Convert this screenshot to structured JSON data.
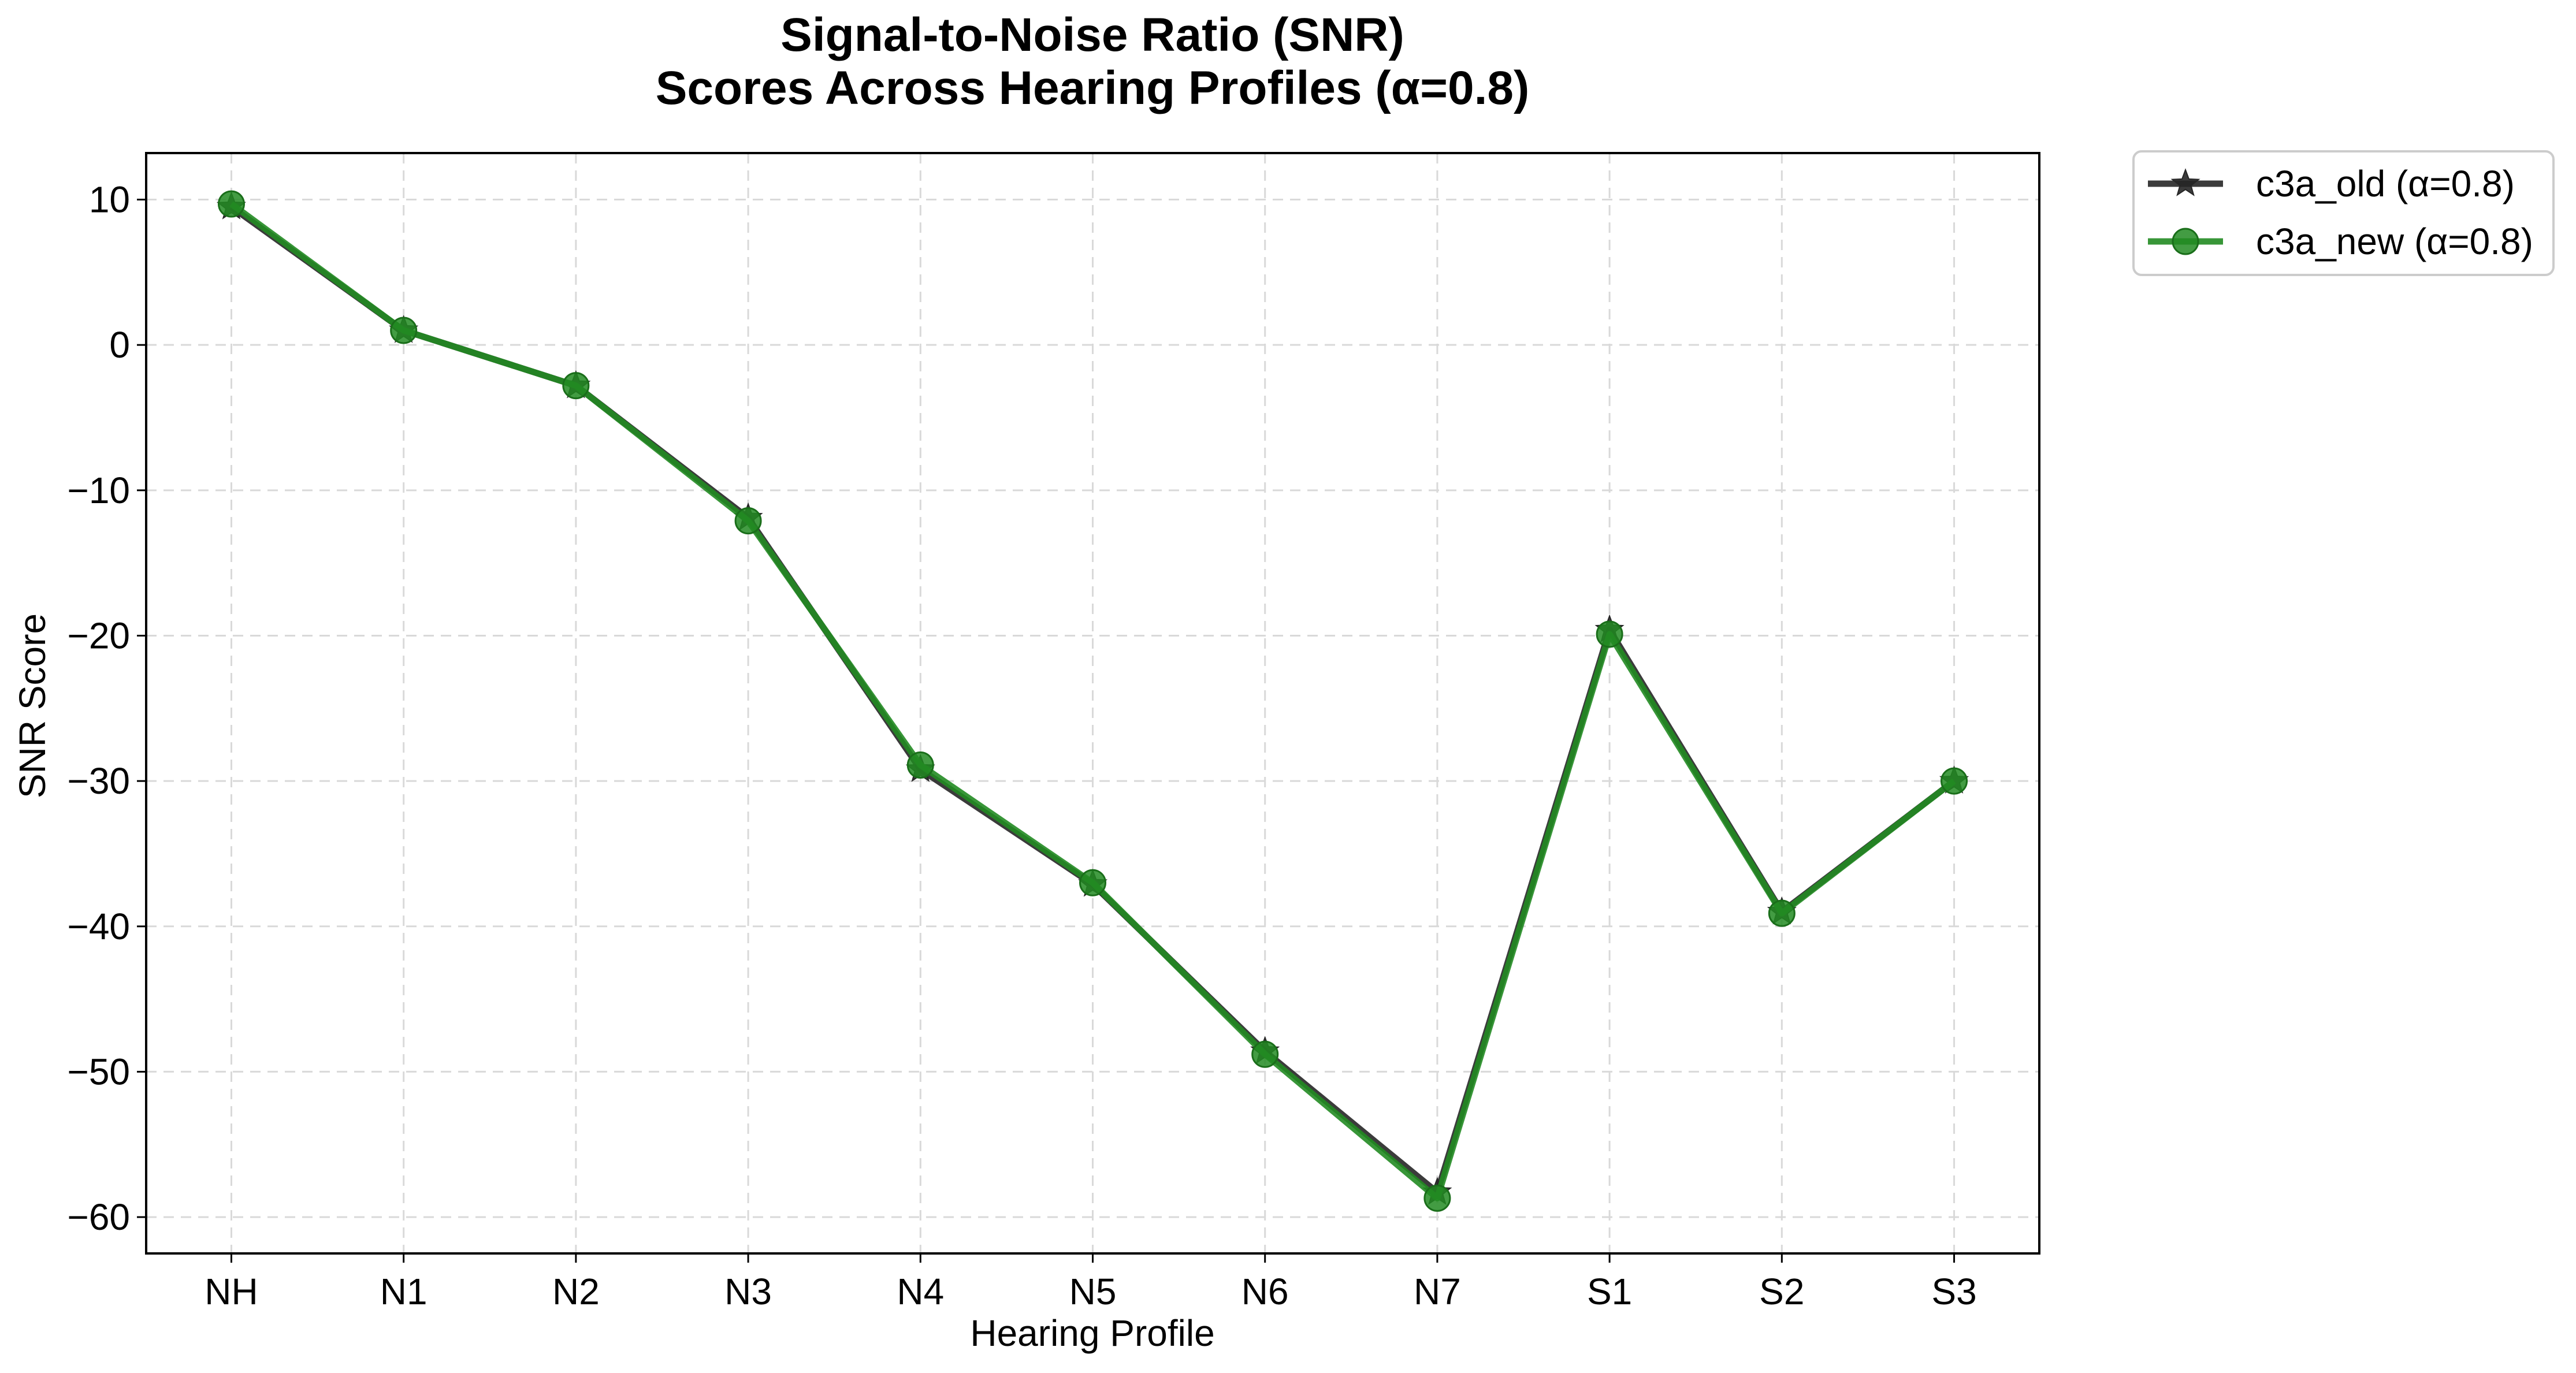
{
  "chart_data": {
    "type": "line",
    "title": [
      "Signal-to-Noise Ratio (SNR)",
      "Scores Across Hearing Profiles (α=0.8)"
    ],
    "xlabel": "Hearing Profile",
    "ylabel": "SNR Score",
    "categories": [
      "NH",
      "N1",
      "N2",
      "N3",
      "N4",
      "N5",
      "N6",
      "N7",
      "S1",
      "S2",
      "S3"
    ],
    "ylim": [
      -62.5,
      13.2
    ],
    "yticks": [
      10,
      0,
      -10,
      -20,
      -30,
      -40,
      -50,
      -60
    ],
    "ytick_labels": [
      "10",
      "0",
      "−10",
      "−20",
      "−30",
      "−40",
      "−50",
      "−60"
    ],
    "grid": true,
    "legend_position": "outside-top-right",
    "series": [
      {
        "name": "c3a_old (α=0.8)",
        "marker": "star",
        "color": "#262626",
        "values": [
          9.5,
          1.0,
          -2.8,
          -11.9,
          -29.2,
          -37.1,
          -48.6,
          -58.3,
          -19.6,
          -39.0,
          -30.0
        ]
      },
      {
        "name": "c3a_new (α=0.8)",
        "marker": "circle",
        "color": "#228B22",
        "values": [
          9.7,
          1.0,
          -2.8,
          -12.1,
          -28.9,
          -37.0,
          -48.8,
          -58.7,
          -19.9,
          -39.1,
          -30.0
        ]
      }
    ]
  }
}
